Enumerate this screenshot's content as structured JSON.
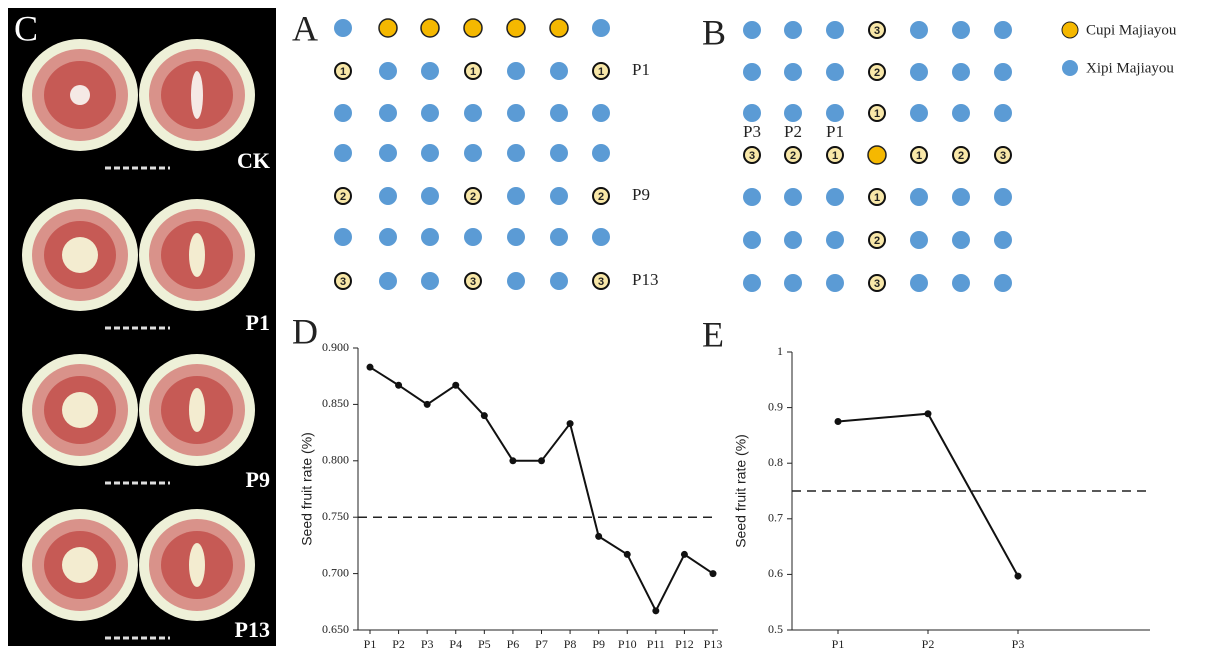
{
  "panel_a": {
    "label": "A",
    "rows": [
      {
        "cells": [
          null,
          null,
          null,
          null,
          null,
          null,
          null
        ]
      },
      {
        "label": "P1",
        "cells": [
          "1",
          null,
          null,
          "1",
          null,
          null,
          "1"
        ]
      },
      {
        "cells": [
          null,
          null,
          null,
          null,
          null,
          null,
          null
        ]
      },
      {
        "cells": [
          null,
          null,
          null,
          null,
          null,
          null,
          null
        ]
      },
      {
        "label": "P9",
        "cells": [
          "2",
          null,
          null,
          "2",
          null,
          null,
          "2"
        ]
      },
      {
        "cells": [
          null,
          null,
          null,
          null,
          null,
          null,
          null
        ]
      },
      {
        "label": "P13",
        "cells": [
          "3",
          null,
          null,
          "3",
          null,
          null,
          "3"
        ]
      }
    ]
  },
  "panel_b": {
    "label": "B",
    "column_labels": [
      "P3",
      "P2",
      "P1"
    ],
    "rows": [
      {
        "cells": [
          null,
          null,
          null,
          "3",
          null,
          null,
          null
        ]
      },
      {
        "cells": [
          null,
          null,
          null,
          "2",
          null,
          null,
          null
        ]
      },
      {
        "cells": [
          null,
          null,
          null,
          "1",
          null,
          null,
          null
        ]
      },
      {
        "cells": [
          "3",
          "2",
          "1",
          null,
          "1",
          "2",
          "3"
        ]
      },
      {
        "cells": [
          null,
          null,
          null,
          "1",
          null,
          null,
          null
        ]
      },
      {
        "cells": [
          null,
          null,
          null,
          "2",
          null,
          null,
          null
        ]
      },
      {
        "cells": [
          null,
          null,
          null,
          "3",
          null,
          null,
          null
        ]
      }
    ]
  },
  "legend": [
    {
      "name": "Cupi Majiayou",
      "color": "#f5b800"
    },
    {
      "name": "Xipi Majiayou",
      "color": "#5b9bd5"
    }
  ],
  "panel_c": {
    "label": "C",
    "labels": [
      "CK",
      "P1",
      "P9",
      "P13"
    ]
  },
  "chart_data": [
    {
      "type": "line",
      "panel_label": "D",
      "y_label": "Seed fruit rate (%)",
      "categories": [
        "P1",
        "P2",
        "P3",
        "P4",
        "P5",
        "P6",
        "P7",
        "P8",
        "P9",
        "P10",
        "P11",
        "P12",
        "P13"
      ],
      "values": [
        0.883,
        0.867,
        0.85,
        0.867,
        0.84,
        0.8,
        0.8,
        0.833,
        0.733,
        0.717,
        0.667,
        0.717,
        0.7
      ],
      "color": "#111111",
      "reference_line": 0.75,
      "ylim": [
        0.65,
        0.9
      ],
      "yticks": [
        {
          "value": 0.65,
          "label": "0.650"
        },
        {
          "value": 0.7,
          "label": "0.700"
        },
        {
          "value": 0.75,
          "label": "0.750"
        },
        {
          "value": 0.8,
          "label": "0.800"
        },
        {
          "value": 0.85,
          "label": "0.850"
        },
        {
          "value": 0.9,
          "label": "0.900"
        }
      ]
    },
    {
      "type": "line",
      "panel_label": "E",
      "y_label": "Seed fruit rate (%)",
      "categories": [
        "P1",
        "P2",
        "P3"
      ],
      "values": [
        0.875,
        0.889,
        0.597
      ],
      "color": "#111111",
      "reference_line": 0.75,
      "ylim": [
        0.5,
        1
      ],
      "yticks": [
        0.5,
        0.6,
        0.7,
        0.8,
        0.9,
        1
      ]
    }
  ]
}
